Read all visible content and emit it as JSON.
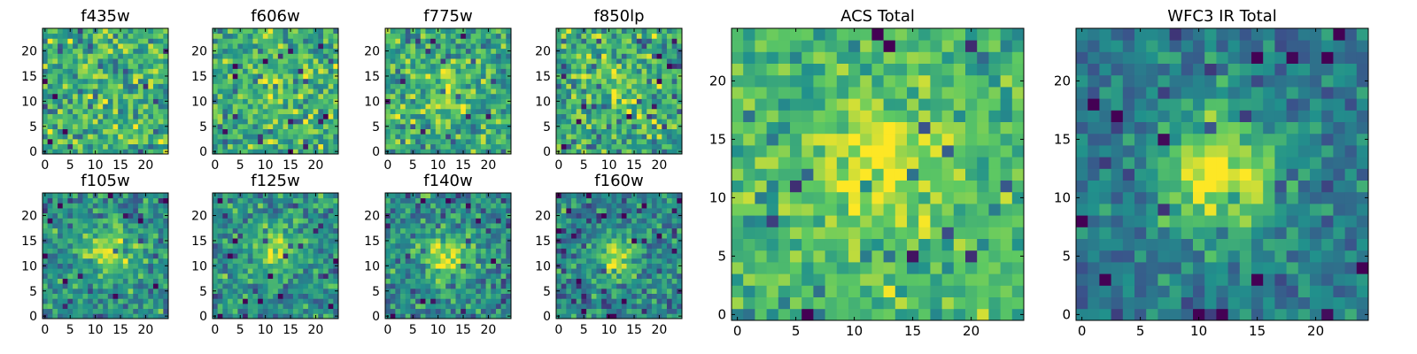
{
  "chart_data": {
    "type": "heatmap",
    "colormap": "viridis",
    "colormap_stops": [
      "#440154",
      "#3b528b",
      "#21918c",
      "#5ec962",
      "#fde725"
    ],
    "panels": [
      {
        "id": "f435w",
        "title": "f435w",
        "grid_size": 25,
        "x_ticks": [
          0,
          5,
          10,
          15,
          20
        ],
        "y_ticks": [
          0,
          5,
          10,
          15,
          20
        ],
        "pattern": {
          "peak": [
            12,
            12
          ],
          "amplitude": 0.05,
          "width": 4,
          "noise_mean": 0.62,
          "noise_spread": 0.5,
          "seed": 11
        }
      },
      {
        "id": "f606w",
        "title": "f606w",
        "grid_size": 25,
        "x_ticks": [
          0,
          5,
          10,
          15,
          20
        ],
        "y_ticks": [
          0,
          5,
          10,
          15,
          20
        ],
        "pattern": {
          "peak": [
            13,
            12
          ],
          "amplitude": 0.2,
          "width": 3,
          "noise_mean": 0.62,
          "noise_spread": 0.45,
          "seed": 23
        }
      },
      {
        "id": "f775w",
        "title": "f775w",
        "grid_size": 25,
        "x_ticks": [
          0,
          5,
          10,
          15,
          20
        ],
        "y_ticks": [
          0,
          5,
          10,
          15,
          20
        ],
        "pattern": {
          "peak": [
            12,
            12
          ],
          "amplitude": 0.2,
          "width": 4,
          "noise_mean": 0.6,
          "noise_spread": 0.45,
          "seed": 37
        }
      },
      {
        "id": "f850lp",
        "title": "f850lp",
        "grid_size": 25,
        "x_ticks": [
          0,
          5,
          10,
          15,
          20
        ],
        "y_ticks": [
          0,
          5,
          10,
          15,
          20
        ],
        "pattern": {
          "peak": [
            12,
            12
          ],
          "amplitude": 0.15,
          "width": 4,
          "noise_mean": 0.6,
          "noise_spread": 0.5,
          "seed": 41
        }
      },
      {
        "id": "f105w",
        "title": "f105w",
        "grid_size": 25,
        "x_ticks": [
          0,
          5,
          10,
          15,
          20
        ],
        "y_ticks": [
          0,
          5,
          10,
          15,
          20
        ],
        "pattern": {
          "peak": [
            12,
            13
          ],
          "amplitude": 0.35,
          "width": 3.5,
          "noise_mean": 0.5,
          "noise_spread": 0.4,
          "seed": 53
        }
      },
      {
        "id": "f125w",
        "title": "f125w",
        "grid_size": 25,
        "x_ticks": [
          0,
          5,
          10,
          15,
          20
        ],
        "y_ticks": [
          0,
          5,
          10,
          15,
          20
        ],
        "pattern": {
          "peak": [
            12,
            13
          ],
          "amplitude": 0.35,
          "width": 3.5,
          "noise_mean": 0.5,
          "noise_spread": 0.4,
          "seed": 67
        }
      },
      {
        "id": "f140w",
        "title": "f140w",
        "grid_size": 25,
        "x_ticks": [
          0,
          5,
          10,
          15,
          20
        ],
        "y_ticks": [
          0,
          5,
          10,
          15,
          20
        ],
        "pattern": {
          "peak": [
            12,
            12
          ],
          "amplitude": 0.45,
          "width": 3,
          "noise_mean": 0.48,
          "noise_spread": 0.42,
          "seed": 79
        }
      },
      {
        "id": "f160w",
        "title": "f160w",
        "grid_size": 25,
        "x_ticks": [
          0,
          5,
          10,
          15,
          20
        ],
        "y_ticks": [
          0,
          5,
          10,
          15,
          20
        ],
        "pattern": {
          "peak": [
            12,
            12
          ],
          "amplitude": 0.5,
          "width": 2.8,
          "noise_mean": 0.45,
          "noise_spread": 0.42,
          "seed": 83
        }
      },
      {
        "id": "acs-total",
        "title": "ACS Total",
        "grid_size": 25,
        "x_ticks": [
          0,
          5,
          10,
          15,
          20
        ],
        "y_ticks": [
          0,
          5,
          10,
          15,
          20
        ],
        "pattern": {
          "peak": [
            12,
            13
          ],
          "amplitude": 0.3,
          "width": 4,
          "noise_mean": 0.65,
          "noise_spread": 0.35,
          "seed": 97
        }
      },
      {
        "id": "wfc3-ir-total",
        "title": "WFC3 IR Total",
        "grid_size": 25,
        "x_ticks": [
          0,
          5,
          10,
          15,
          20
        ],
        "y_ticks": [
          0,
          5,
          10,
          15,
          20
        ],
        "pattern": {
          "peak": [
            12,
            12
          ],
          "amplitude": 0.55,
          "width": 3.5,
          "noise_mean": 0.42,
          "noise_spread": 0.3,
          "seed": 101
        }
      }
    ]
  }
}
